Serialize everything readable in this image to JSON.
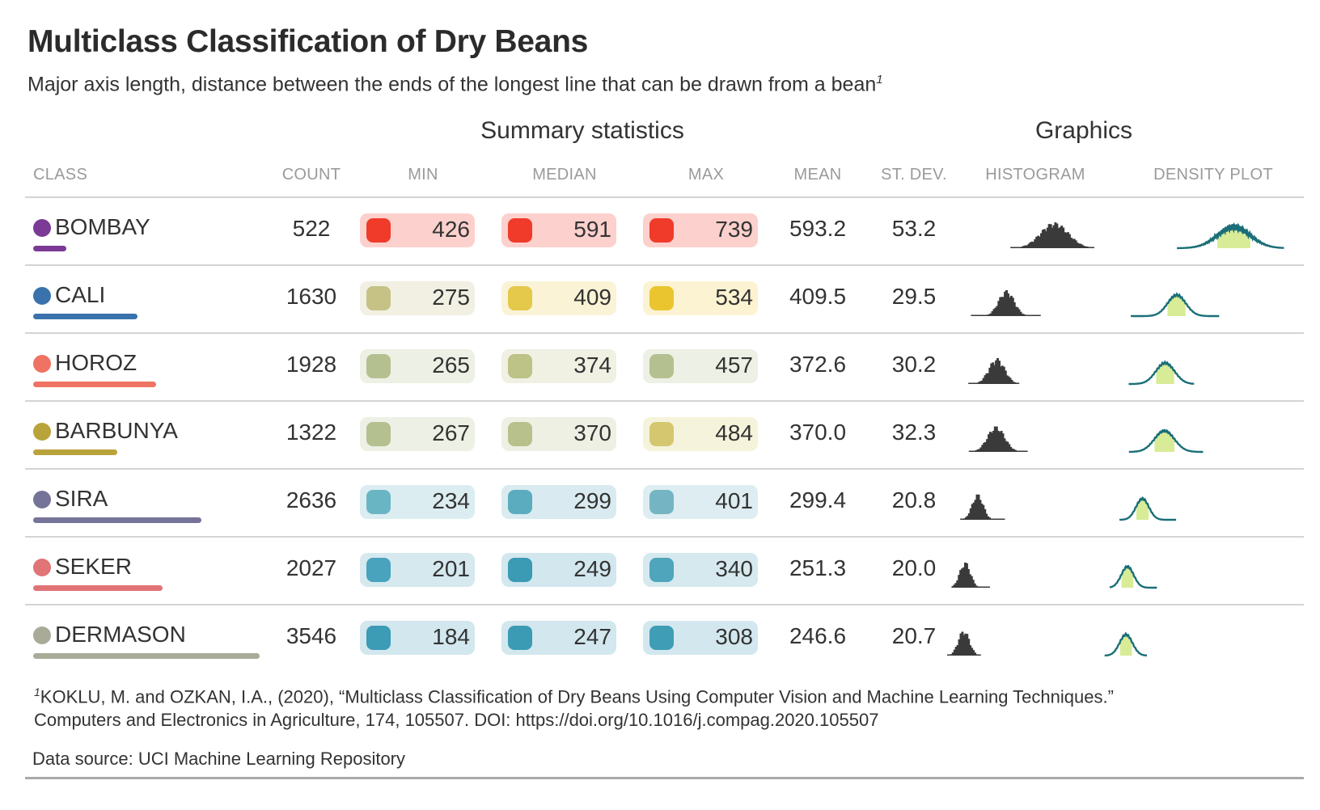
{
  "title": "Multiclass Classification of Dry Beans",
  "subtitle": "Major axis length, distance between the ends of the longest line that can be drawn from a bean",
  "subtitle_note": "1",
  "group_headers": {
    "summary": "Summary statistics",
    "graphics": "Graphics"
  },
  "columns": {
    "class": "CLASS",
    "count": "COUNT",
    "min": "MIN",
    "median": "MEDIAN",
    "max": "MAX",
    "mean": "MEAN",
    "sd": "ST. DEV.",
    "histogram": "HISTOGRAM",
    "density": "DENSITY PLOT"
  },
  "footnote": {
    "mark": "1",
    "line1": "KOKLU, M. and OZKAN, I.A., (2020), “Multiclass Classification of Dry Beans Using Computer Vision and Machine Learning Techniques.”",
    "line2": "Computers and Electronics in Agriculture, 174, 105507. DOI: https://doi.org/10.1016/j.compag.2020.105507"
  },
  "source": "Data source: UCI Machine Learning Repository",
  "chart_data": {
    "type": "table",
    "value_range": [
      150,
      800
    ],
    "count_max": 3546,
    "rows": [
      {
        "class": "BOMBAY",
        "color": "#7b3a96",
        "count": "522",
        "min": "426",
        "median": "591",
        "max": "739",
        "mean": "593.2",
        "sd": "53.2",
        "swatches": {
          "min": [
            "#f03a2a",
            "#fcd0cc"
          ],
          "median": [
            "#f03a2a",
            "#fcd0cc"
          ],
          "max": [
            "#f03a2a",
            "#fcd0cc"
          ]
        }
      },
      {
        "class": "CALI",
        "color": "#3a72ad",
        "count": "1630",
        "min": "275",
        "median": "409",
        "max": "534",
        "mean": "409.5",
        "sd": "29.5",
        "swatches": {
          "min": [
            "#c6c286",
            "#f1f0e3"
          ],
          "median": [
            "#e4c94a",
            "#faf3d6"
          ],
          "max": [
            "#eac52f",
            "#fbf3d2"
          ]
        }
      },
      {
        "class": "HOROZ",
        "color": "#ee7362",
        "count": "1928",
        "min": "265",
        "median": "374",
        "max": "457",
        "mean": "372.6",
        "sd": "30.2",
        "swatches": {
          "min": [
            "#b4c08f",
            "#edf0e4"
          ],
          "median": [
            "#bdc286",
            "#f0f0e3"
          ],
          "max": [
            "#b5c090",
            "#edf0e4"
          ]
        }
      },
      {
        "class": "BARBUNYA",
        "color": "#b9a33b",
        "count": "1322",
        "min": "267",
        "median": "370",
        "max": "484",
        "mean": "370.0",
        "sd": "32.3",
        "swatches": {
          "min": [
            "#b4c08f",
            "#edf0e4"
          ],
          "median": [
            "#b8c18c",
            "#eef0e4"
          ],
          "max": [
            "#d4c76f",
            "#f6f3dc"
          ]
        }
      },
      {
        "class": "SIRA",
        "color": "#767398",
        "count": "2636",
        "min": "234",
        "median": "299",
        "max": "401",
        "mean": "299.4",
        "sd": "20.8",
        "swatches": {
          "min": [
            "#6ab5c4",
            "#dcedf1"
          ],
          "median": [
            "#5cacbf",
            "#d9ebf0"
          ],
          "max": [
            "#75b5c3",
            "#deedf1"
          ]
        }
      },
      {
        "class": "SEKER",
        "color": "#e07477",
        "count": "2027",
        "min": "201",
        "median": "249",
        "max": "340",
        "mean": "251.3",
        "sd": "20.0",
        "swatches": {
          "min": [
            "#4aa3bc",
            "#d5e9ef"
          ],
          "median": [
            "#3b9bb5",
            "#d2e7ee"
          ],
          "max": [
            "#4fa5bb",
            "#d6e9ef"
          ]
        }
      },
      {
        "class": "DERMASON",
        "color": "#a9aa98",
        "count": "3546",
        "min": "184",
        "median": "247",
        "max": "308",
        "mean": "246.6",
        "sd": "20.7",
        "swatches": {
          "min": [
            "#3c9bb5",
            "#d2e7ee"
          ],
          "median": [
            "#3b9bb5",
            "#d2e7ee"
          ],
          "max": [
            "#3f9db6",
            "#d3e8ee"
          ]
        }
      }
    ],
    "colors": {
      "histogram": "#3a3a3a",
      "density_line": "#1a6e78",
      "density_fill": "#d8ec98"
    }
  }
}
